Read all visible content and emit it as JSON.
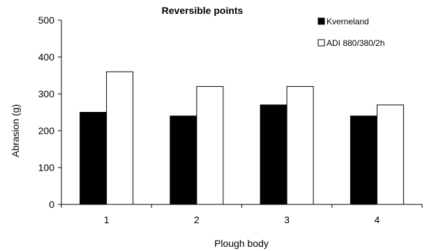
{
  "chart_data": {
    "type": "bar",
    "title": "Reversible points",
    "xlabel": "Plough body",
    "ylabel": "Abrasion (g)",
    "categories": [
      "1",
      "2",
      "3",
      "4"
    ],
    "ylim": [
      0,
      500
    ],
    "yticks": [
      0,
      100,
      200,
      300,
      400,
      500
    ],
    "grid": false,
    "legend_position": "top-right",
    "series": [
      {
        "name": "Kverneland",
        "values": [
          250,
          240,
          270,
          240
        ],
        "color": "#000000"
      },
      {
        "name": "ADI 880/380/2h",
        "values": [
          360,
          320,
          320,
          270
        ],
        "color": "#ffffff"
      }
    ]
  }
}
